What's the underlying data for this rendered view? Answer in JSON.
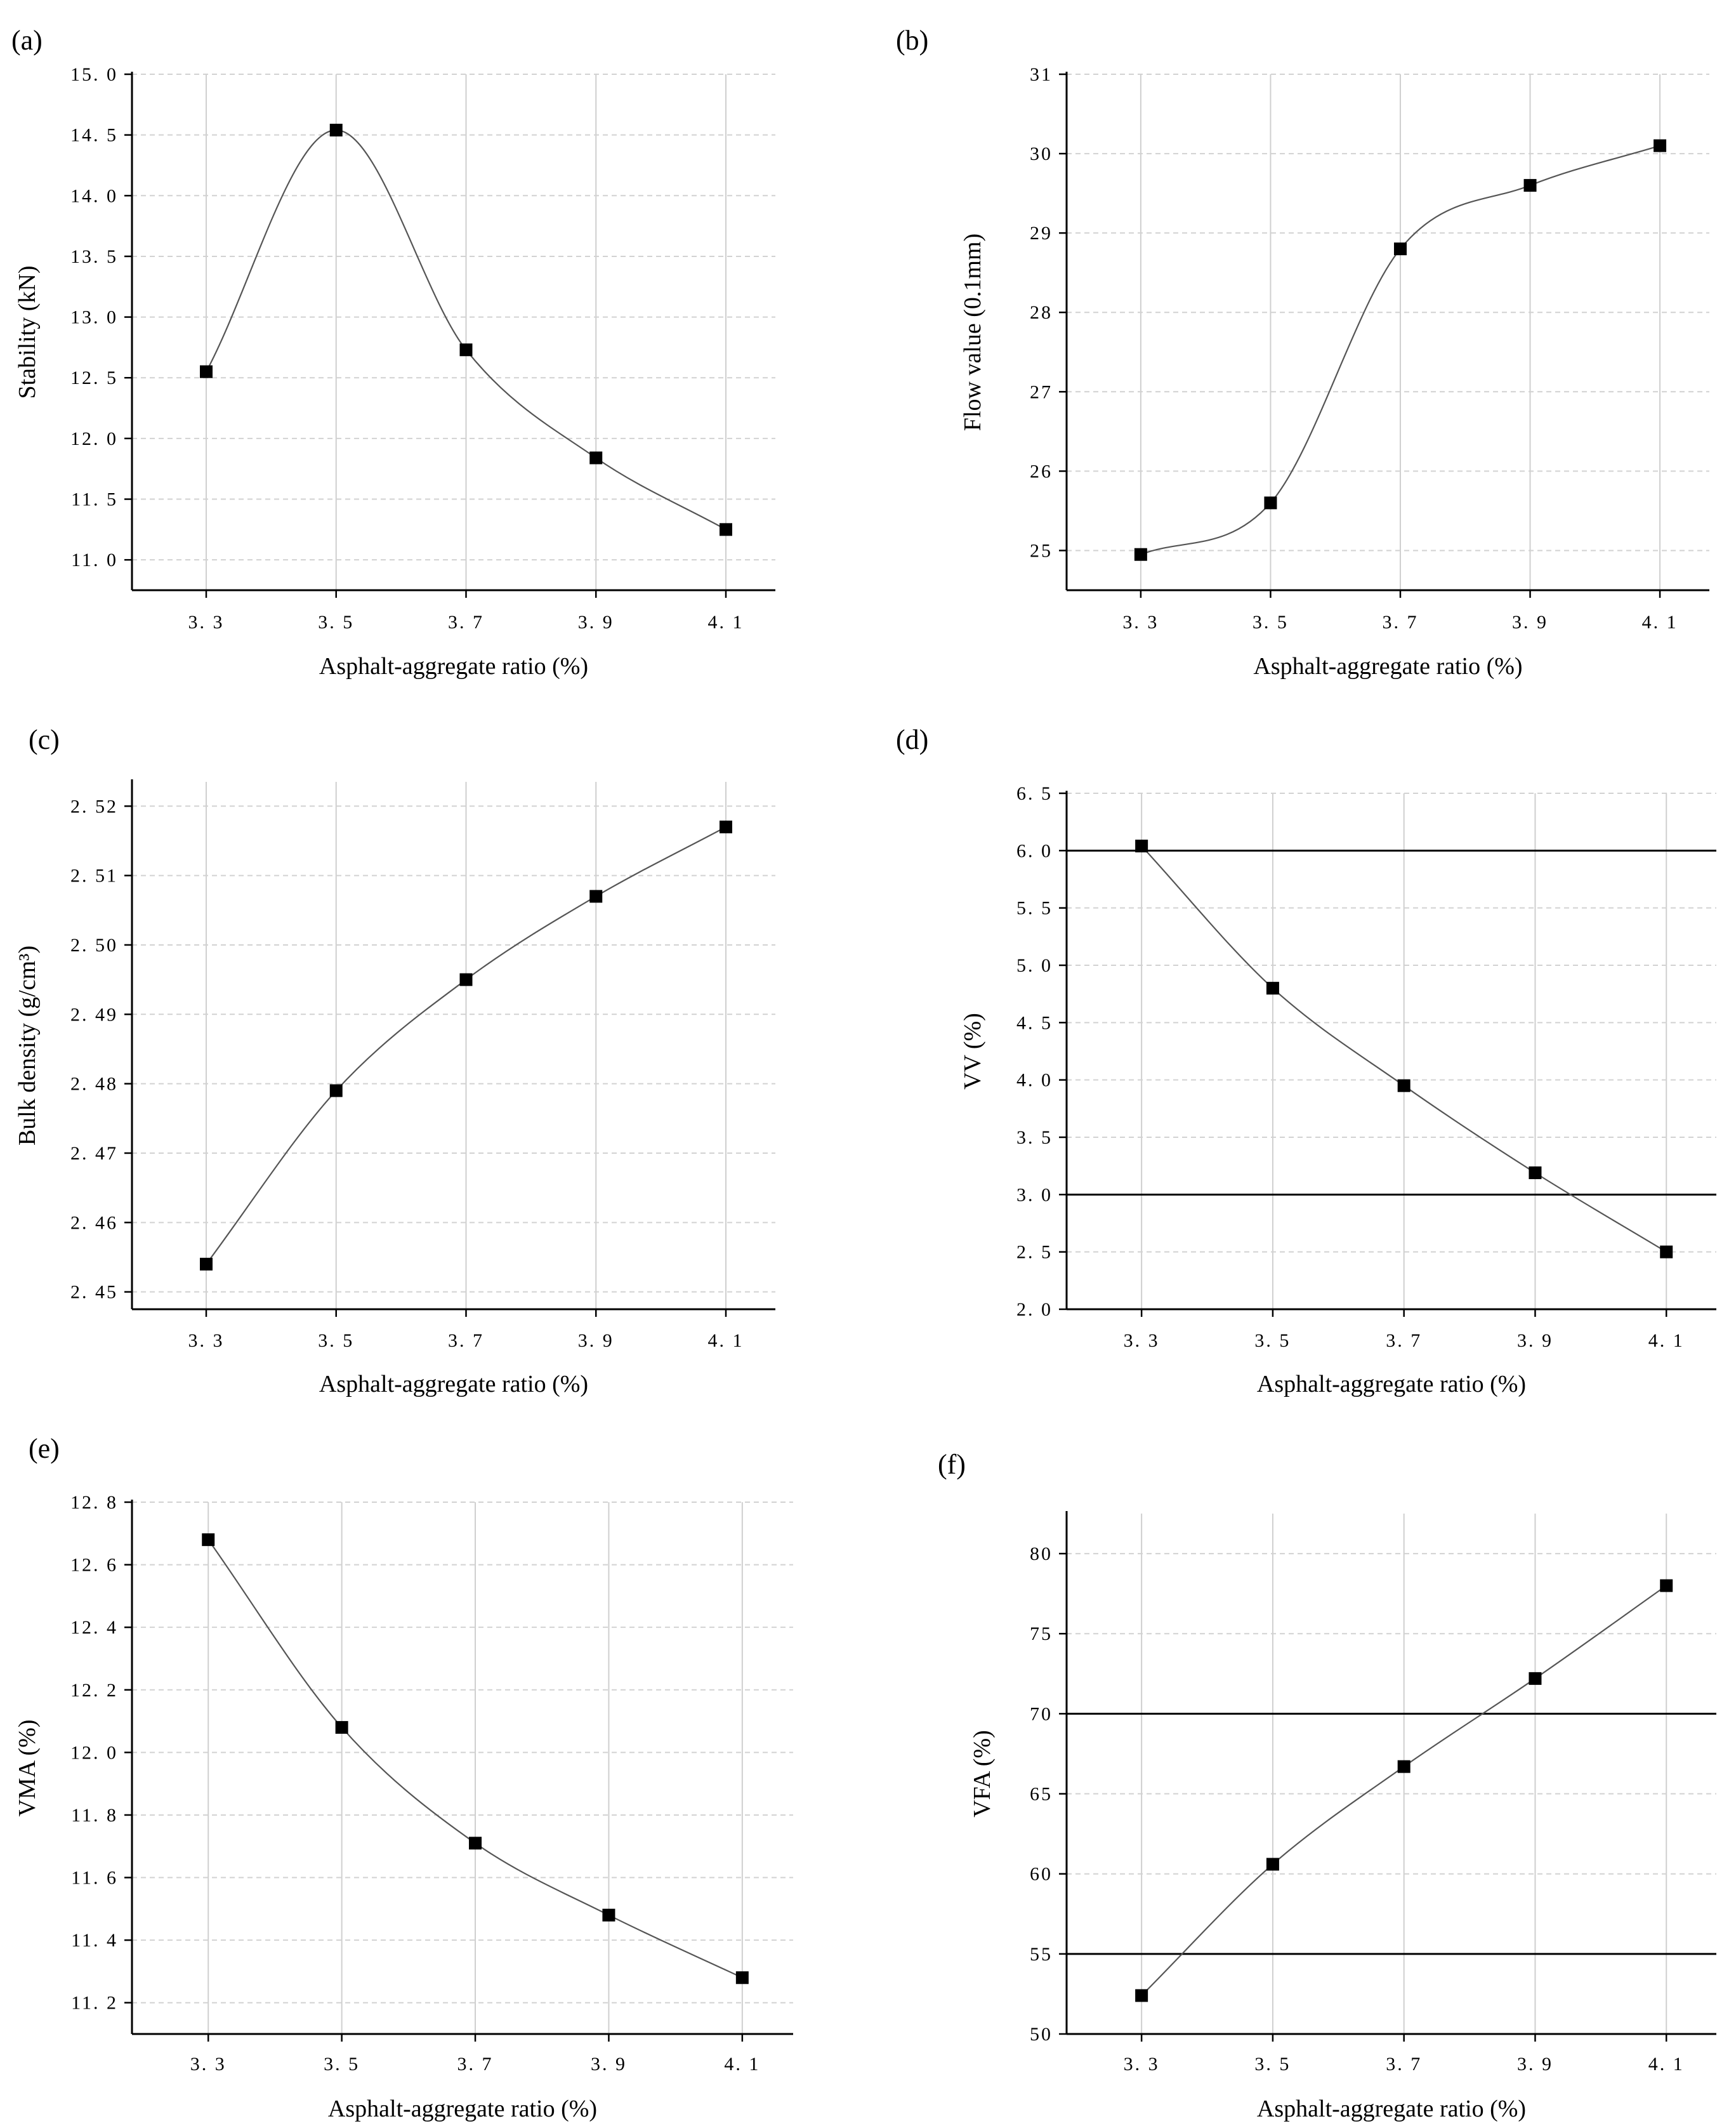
{
  "chart_data": [
    {
      "type": "line",
      "panel_label": "(a)",
      "xlabel": "Asphalt-aggregate ratio (%)",
      "ylabel": "Stability (kN)",
      "x": [
        3.3,
        3.5,
        3.7,
        3.9,
        4.1
      ],
      "x_tick_labels": [
        "3. 3",
        "3. 5",
        "3. 7",
        "3. 9",
        "4. 1"
      ],
      "y": [
        12.55,
        14.54,
        12.73,
        11.84,
        11.25
      ],
      "ylim": [
        10.75,
        15.0
      ],
      "y_ticks": [
        11.0,
        11.5,
        12.0,
        12.5,
        13.0,
        13.5,
        14.0,
        14.5,
        15.0
      ],
      "y_tick_labels": [
        "11. 0",
        "11. 5",
        "12. 0",
        "12. 5",
        "13. 0",
        "13. 5",
        "14. 0",
        "14. 5",
        "15. 0"
      ],
      "reference_lines": []
    },
    {
      "type": "line",
      "panel_label": "(b)",
      "xlabel": "Asphalt-aggregate ratio (%)",
      "ylabel": "Flow value (0.1mm)",
      "x": [
        3.3,
        3.5,
        3.7,
        3.9,
        4.1
      ],
      "x_tick_labels": [
        "3. 3",
        "3. 5",
        "3. 7",
        "3. 9",
        "4. 1"
      ],
      "y": [
        24.95,
        25.6,
        28.8,
        29.6,
        30.1
      ],
      "ylim": [
        24.5,
        31.0
      ],
      "y_ticks": [
        25,
        26,
        27,
        28,
        29,
        30,
        31
      ],
      "y_tick_labels": [
        "25",
        "26",
        "27",
        "28",
        "29",
        "30",
        "31"
      ],
      "reference_lines": []
    },
    {
      "type": "line",
      "panel_label": "(c)",
      "xlabel": "Asphalt-aggregate ratio (%)",
      "ylabel": "Bulk density (g/cm³)",
      "x": [
        3.3,
        3.5,
        3.7,
        3.9,
        4.1
      ],
      "x_tick_labels": [
        "3. 3",
        "3. 5",
        "3. 7",
        "3. 9",
        "4. 1"
      ],
      "y": [
        2.454,
        2.479,
        2.495,
        2.507,
        2.517
      ],
      "ylim": [
        2.4475,
        2.5235
      ],
      "y_ticks": [
        2.45,
        2.46,
        2.47,
        2.48,
        2.49,
        2.5,
        2.51,
        2.52
      ],
      "y_tick_labels": [
        "2. 45",
        "2. 46",
        "2. 47",
        "2. 48",
        "2. 49",
        "2. 50",
        "2. 51",
        "2. 52"
      ],
      "reference_lines": []
    },
    {
      "type": "line",
      "panel_label": "(d)",
      "xlabel": "Asphalt-aggregate ratio (%)",
      "ylabel": "VV (%)",
      "x": [
        3.3,
        3.5,
        3.7,
        3.9,
        4.1
      ],
      "x_tick_labels": [
        "3. 3",
        "3. 5",
        "3. 7",
        "3. 9",
        "4. 1"
      ],
      "y": [
        6.04,
        4.8,
        3.95,
        3.19,
        2.5
      ],
      "ylim": [
        2.0,
        6.5
      ],
      "y_ticks": [
        2.0,
        2.5,
        3.0,
        3.5,
        4.0,
        4.5,
        5.0,
        5.5,
        6.0,
        6.5
      ],
      "y_tick_labels": [
        "2. 0",
        "2. 5",
        "3. 0",
        "3. 5",
        "4. 0",
        "4. 5",
        "5. 0",
        "5. 5",
        "6. 0",
        "6. 5"
      ],
      "reference_lines": [
        3.0,
        6.0
      ]
    },
    {
      "type": "line",
      "panel_label": "(e)",
      "xlabel": "Asphalt-aggregate ratio (%)",
      "ylabel": "VMA (%)",
      "x": [
        3.3,
        3.5,
        3.7,
        3.9,
        4.1
      ],
      "x_tick_labels": [
        "3. 3",
        "3. 5",
        "3. 7",
        "3. 9",
        "4. 1"
      ],
      "y": [
        12.68,
        12.08,
        11.71,
        11.48,
        11.28
      ],
      "ylim": [
        11.1,
        12.8
      ],
      "y_ticks": [
        11.2,
        11.4,
        11.6,
        11.8,
        12.0,
        12.2,
        12.4,
        12.6,
        12.8
      ],
      "y_tick_labels": [
        "11. 2",
        "11. 4",
        "11. 6",
        "11. 8",
        "12. 0",
        "12. 2",
        "12. 4",
        "12. 6",
        "12. 8"
      ],
      "reference_lines": []
    },
    {
      "type": "line",
      "panel_label": "(f)",
      "xlabel": "Asphalt-aggregate ratio (%)",
      "ylabel": "VFA (%)",
      "x": [
        3.3,
        3.5,
        3.7,
        3.9,
        4.1
      ],
      "x_tick_labels": [
        "3. 3",
        "3. 5",
        "3. 7",
        "3. 9",
        "4. 1"
      ],
      "y": [
        52.4,
        60.6,
        66.7,
        72.2,
        78.0
      ],
      "ylim": [
        50,
        82.5
      ],
      "y_ticks": [
        50,
        55,
        60,
        65,
        70,
        75,
        80
      ],
      "y_tick_labels": [
        "50",
        "55",
        "60",
        "65",
        "70",
        "75",
        "80"
      ],
      "reference_lines": [
        55,
        70
      ]
    }
  ]
}
